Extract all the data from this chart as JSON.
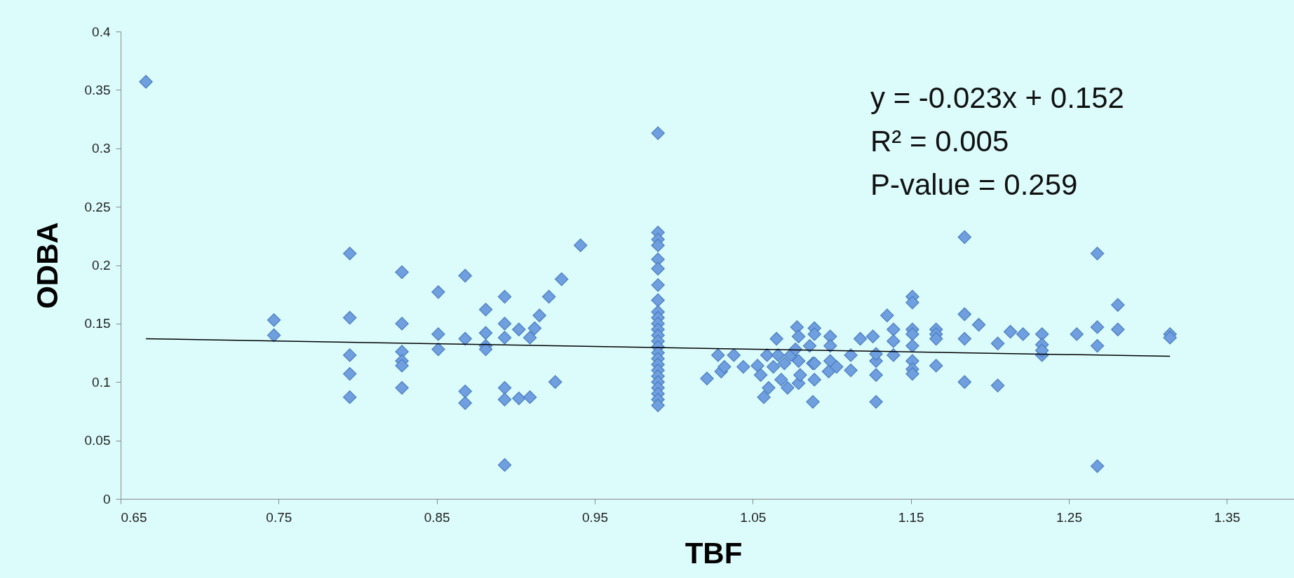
{
  "chart_data": {
    "type": "scatter",
    "xlabel": "TBF",
    "ylabel": "ODBA",
    "annotations": [
      "y = -0.023x + 0.152",
      "R² = 0.005",
      "P-value = 0.259"
    ],
    "xlim": [
      0.65,
      1.4
    ],
    "xticks": [
      0.65,
      0.75,
      0.85,
      0.95,
      1.05,
      1.15,
      1.25,
      1.35
    ],
    "ylim": [
      0,
      0.4
    ],
    "yticks": [
      0,
      0.05,
      0.1,
      0.15,
      0.2,
      0.25,
      0.3,
      0.35,
      0.4
    ],
    "grid": false,
    "marker": "diamond",
    "series": [
      {
        "color": "#6f9fde",
        "x": [
          0.666,
          0.747,
          0.747,
          0.795,
          0.795,
          0.795,
          0.795,
          0.795,
          0.828,
          0.828,
          0.828,
          0.828,
          0.828,
          0.828,
          0.851,
          0.851,
          0.851,
          0.868,
          0.868,
          0.868,
          0.868,
          0.881,
          0.881,
          0.881,
          0.881,
          0.893,
          0.893,
          0.893,
          0.893,
          0.893,
          0.893,
          0.902,
          0.902,
          0.909,
          0.909,
          0.912,
          0.915,
          0.921,
          0.925,
          0.929,
          0.941,
          0.99,
          0.99,
          0.99,
          0.99,
          0.99,
          0.99,
          0.99,
          0.99,
          0.99,
          0.99,
          0.99,
          0.99,
          0.99,
          0.99,
          0.99,
          0.99,
          0.99,
          0.99,
          0.99,
          0.99,
          0.99,
          0.99,
          0.99,
          0.99,
          0.99,
          1.021,
          1.028,
          1.03,
          1.032,
          1.038,
          1.044,
          1.053,
          1.055,
          1.057,
          1.059,
          1.06,
          1.063,
          1.065,
          1.066,
          1.068,
          1.07,
          1.072,
          1.074,
          1.077,
          1.078,
          1.079,
          1.079,
          1.079,
          1.08,
          1.086,
          1.088,
          1.089,
          1.089,
          1.089,
          1.089,
          1.088,
          1.099,
          1.099,
          1.099,
          1.098,
          1.103,
          1.112,
          1.112,
          1.118,
          1.126,
          1.128,
          1.128,
          1.128,
          1.128,
          1.135,
          1.139,
          1.139,
          1.139,
          1.151,
          1.151,
          1.151,
          1.151,
          1.151,
          1.151,
          1.151,
          1.151,
          1.166,
          1.166,
          1.166,
          1.166,
          1.184,
          1.184,
          1.184,
          1.184,
          1.193,
          1.205,
          1.205,
          1.213,
          1.221,
          1.233,
          1.233,
          1.233,
          1.233,
          1.255,
          1.268,
          1.268,
          1.268,
          1.268,
          1.281,
          1.281,
          1.314,
          1.314
        ],
        "values": [
          0.357,
          0.153,
          0.14,
          0.21,
          0.155,
          0.123,
          0.107,
          0.087,
          0.194,
          0.15,
          0.126,
          0.118,
          0.114,
          0.095,
          0.177,
          0.141,
          0.128,
          0.191,
          0.137,
          0.092,
          0.082,
          0.162,
          0.142,
          0.131,
          0.128,
          0.173,
          0.15,
          0.138,
          0.095,
          0.085,
          0.029,
          0.145,
          0.086,
          0.138,
          0.087,
          0.146,
          0.157,
          0.173,
          0.1,
          0.188,
          0.217,
          0.313,
          0.228,
          0.222,
          0.217,
          0.205,
          0.197,
          0.183,
          0.17,
          0.16,
          0.155,
          0.15,
          0.145,
          0.14,
          0.135,
          0.13,
          0.125,
          0.12,
          0.115,
          0.11,
          0.105,
          0.1,
          0.095,
          0.09,
          0.085,
          0.08,
          0.103,
          0.123,
          0.109,
          0.113,
          0.123,
          0.113,
          0.114,
          0.106,
          0.087,
          0.123,
          0.095,
          0.113,
          0.137,
          0.123,
          0.102,
          0.116,
          0.095,
          0.123,
          0.128,
          0.147,
          0.139,
          0.118,
          0.099,
          0.106,
          0.131,
          0.116,
          0.146,
          0.141,
          0.116,
          0.102,
          0.083,
          0.139,
          0.131,
          0.118,
          0.109,
          0.113,
          0.123,
          0.11,
          0.137,
          0.139,
          0.118,
          0.124,
          0.083,
          0.106,
          0.157,
          0.145,
          0.135,
          0.123,
          0.173,
          0.168,
          0.145,
          0.141,
          0.131,
          0.118,
          0.111,
          0.107,
          0.145,
          0.141,
          0.137,
          0.114,
          0.158,
          0.137,
          0.1,
          0.224,
          0.149,
          0.133,
          0.097,
          0.143,
          0.141,
          0.141,
          0.132,
          0.123,
          0.127,
          0.141,
          0.21,
          0.147,
          0.131,
          0.028,
          0.166,
          0.145,
          0.141,
          0.138
        ]
      },
      {
        "type": "line",
        "marker": "none",
        "color": "#000000",
        "x": [
          0.666,
          1.314
        ],
        "values": [
          0.137,
          0.122
        ]
      }
    ]
  }
}
